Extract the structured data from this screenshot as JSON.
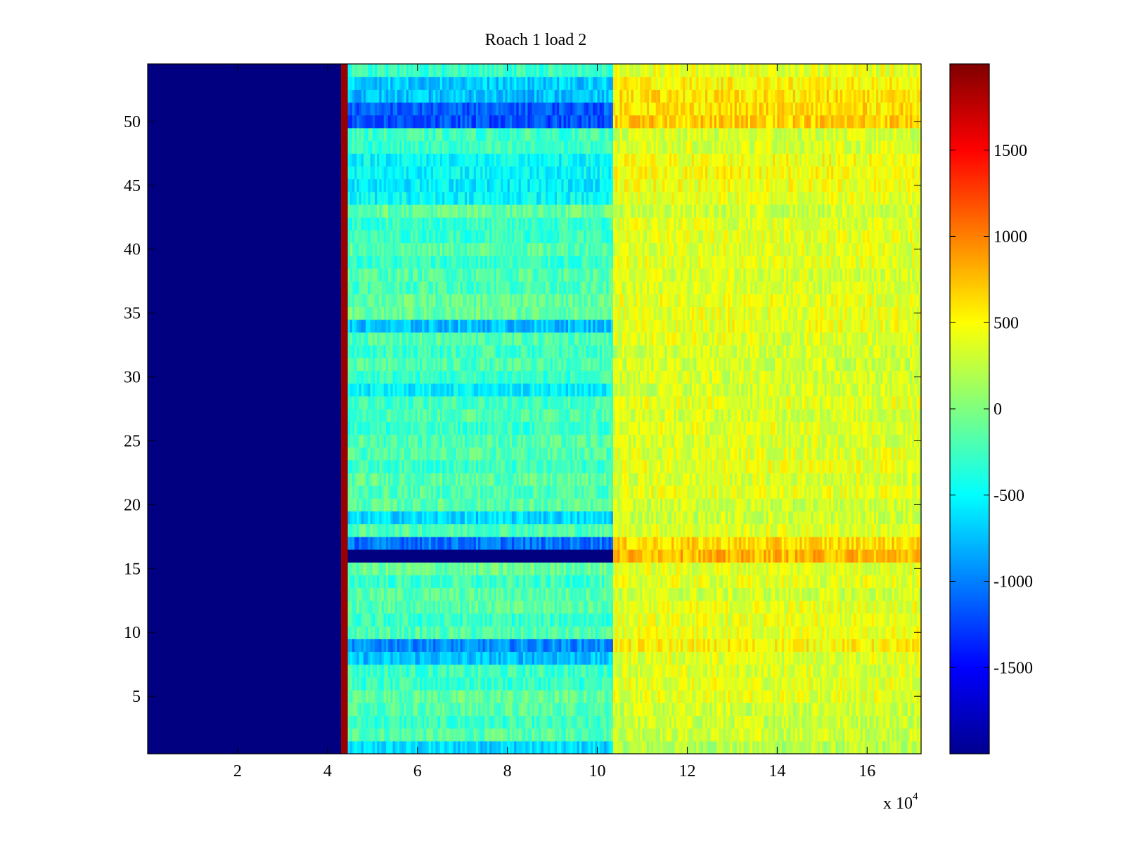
{
  "chart_data": {
    "type": "heatmap",
    "title": "Roach 1 load 2",
    "xlabel": "",
    "ylabel": "",
    "x_scale_label": "x 10",
    "x_scale_exponent": "4",
    "xlim": [
      0,
      17.2
    ],
    "ylim": [
      0.5,
      54.5
    ],
    "x_ticks": [
      2,
      4,
      6,
      8,
      10,
      12,
      14,
      16
    ],
    "x_tick_labels": [
      "2",
      "4",
      "6",
      "8",
      "10",
      "12",
      "14",
      "16"
    ],
    "y_ticks": [
      5,
      10,
      15,
      20,
      25,
      30,
      35,
      40,
      45,
      50
    ],
    "y_tick_labels": [
      "5",
      "10",
      "15",
      "20",
      "25",
      "30",
      "35",
      "40",
      "45",
      "50"
    ],
    "colormap": "jet",
    "clim": [
      -2000,
      2000
    ],
    "colorbar_ticks": [
      1500,
      1000,
      500,
      0,
      -500,
      -1000,
      -1500
    ],
    "colorbar_tick_labels": [
      "1500",
      "1000",
      "500",
      "0",
      "-500",
      "-1000",
      "-1500"
    ],
    "regions": [
      {
        "x_range": [
          0,
          4.3
        ],
        "value": -2000,
        "description": "no data / floor"
      },
      {
        "x_range": [
          4.3,
          4.45
        ],
        "value": 1900,
        "description": "onset spike"
      },
      {
        "x_range": [
          4.45,
          10.35
        ],
        "value": -200,
        "description": "first segment"
      },
      {
        "x_range": [
          10.35,
          17.2
        ],
        "value": 350,
        "description": "second segment"
      }
    ],
    "row_offsets": {
      "rows": [
        1,
        8,
        9,
        16,
        17,
        19,
        29,
        34,
        44,
        45,
        46,
        47,
        50,
        51,
        52,
        53
      ],
      "first_segment_values": [
        -650,
        -750,
        -950,
        -2000,
        -1050,
        -650,
        -550,
        -750,
        -500,
        -550,
        -500,
        -500,
        -1200,
        -1150,
        -750,
        -700
      ],
      "second_segment_values": [
        200,
        380,
        520,
        780,
        640,
        300,
        320,
        420,
        400,
        450,
        480,
        450,
        700,
        620,
        600,
        520
      ]
    }
  }
}
